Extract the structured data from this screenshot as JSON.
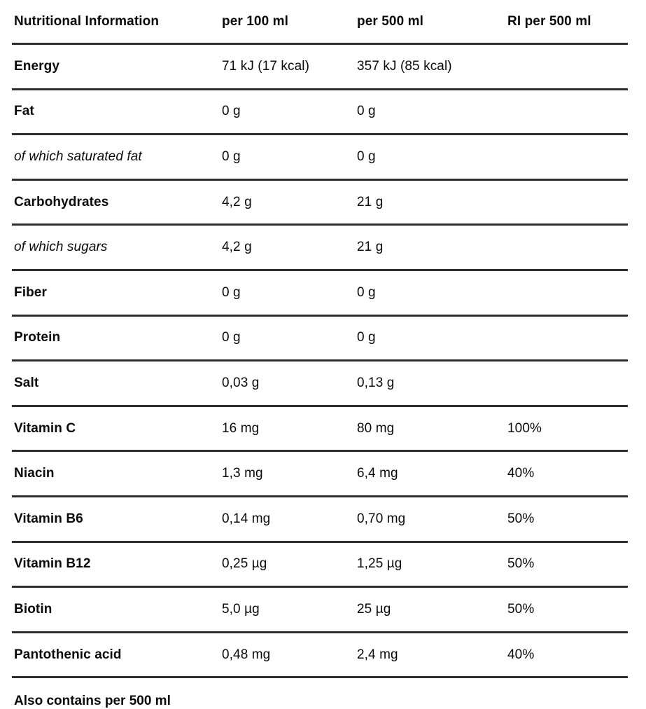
{
  "table": {
    "columns": [
      "Nutritional Information",
      "per 100 ml",
      "per 500 ml",
      "RI per 500 ml"
    ],
    "rows": [
      {
        "label": "Energy",
        "per100": "71 kJ (17 kcal)",
        "per500": "357 kJ (85 kcal)",
        "ri": "",
        "style": "bold"
      },
      {
        "label": "Fat",
        "per100": "0 g",
        "per500": "0 g",
        "ri": "",
        "style": "bold"
      },
      {
        "label": "of which saturated fat",
        "per100": "0 g",
        "per500": "0 g",
        "ri": "",
        "style": "italic"
      },
      {
        "label": "Carbohydrates",
        "per100": "4,2 g",
        "per500": "21 g",
        "ri": "",
        "style": "bold"
      },
      {
        "label": "of which sugars",
        "per100": "4,2 g",
        "per500": "21 g",
        "ri": "",
        "style": "italic"
      },
      {
        "label": "Fiber",
        "per100": "0 g",
        "per500": "0 g",
        "ri": "",
        "style": "bold"
      },
      {
        "label": "Protein",
        "per100": "0 g",
        "per500": "0 g",
        "ri": "",
        "style": "bold"
      },
      {
        "label": "Salt",
        "per100": "0,03 g",
        "per500": "0,13 g",
        "ri": "",
        "style": "bold"
      },
      {
        "label": "Vitamin C",
        "per100": "16 mg",
        "per500": "80 mg",
        "ri": "100%",
        "style": "bold"
      },
      {
        "label": "Niacin",
        "per100": "1,3 mg",
        "per500": "6,4 mg",
        "ri": "40%",
        "style": "bold"
      },
      {
        "label": "Vitamin B6",
        "per100": "0,14 mg",
        "per500": "0,70 mg",
        "ri": "50%",
        "style": "bold"
      },
      {
        "label": "Vitamin B12",
        "per100": "0,25 µg",
        "per500": "1,25 µg",
        "ri": "50%",
        "style": "bold"
      },
      {
        "label": "Biotin",
        "per100": "5,0 µg",
        "per500": "25 µg",
        "ri": "50%",
        "style": "bold"
      },
      {
        "label": "Pantothenic acid",
        "per100": "0,48 mg",
        "per500": "2,4 mg",
        "ri": "40%",
        "style": "bold"
      }
    ],
    "footer_clipped": "Also contains per 500 ml"
  },
  "colors": {
    "background": "#ffffff",
    "text": "#0a0a0a",
    "rule": "#2e2e2e"
  }
}
